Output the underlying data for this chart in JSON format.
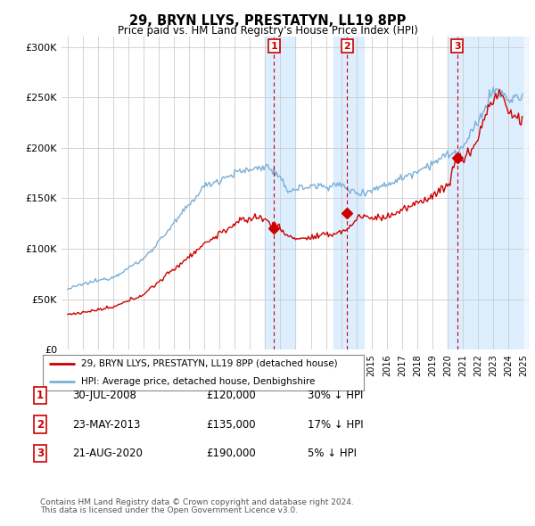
{
  "title": "29, BRYN LLYS, PRESTATYN, LL19 8PP",
  "subtitle": "Price paid vs. HM Land Registry's House Price Index (HPI)",
  "legend_line1": "29, BRYN LLYS, PRESTATYN, LL19 8PP (detached house)",
  "legend_line2": "HPI: Average price, detached house, Denbighshire",
  "footer1": "Contains HM Land Registry data © Crown copyright and database right 2024.",
  "footer2": "This data is licensed under the Open Government Licence v3.0.",
  "transactions": [
    {
      "num": 1,
      "date": "30-JUL-2008",
      "price": "£120,000",
      "pct": "30% ↓ HPI"
    },
    {
      "num": 2,
      "date": "23-MAY-2013",
      "price": "£135,000",
      "pct": "17% ↓ HPI"
    },
    {
      "num": 3,
      "date": "21-AUG-2020",
      "price": "£190,000",
      "pct": "5% ↓ HPI"
    }
  ],
  "sale_years": [
    2008.58,
    2013.39,
    2020.64
  ],
  "sale_prices": [
    120000,
    135000,
    190000
  ],
  "shade_ranges": [
    [
      2008.0,
      2010.0
    ],
    [
      2012.5,
      2014.5
    ],
    [
      2020.0,
      2026.0
    ]
  ],
  "hpi_color": "#7ab0d8",
  "price_color": "#cc0000",
  "ylim": [
    0,
    310000
  ],
  "yticks": [
    0,
    50000,
    100000,
    150000,
    200000,
    250000,
    300000
  ],
  "xlim": [
    1994.6,
    2025.4
  ],
  "background_color": "#ffffff",
  "plot_bg": "#ffffff",
  "grid_color": "#cccccc",
  "shade_color": "#ddeeff"
}
